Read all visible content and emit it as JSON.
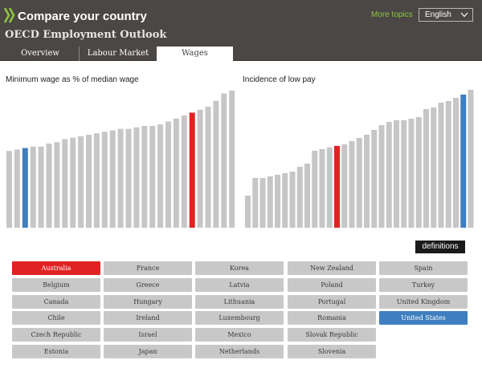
{
  "header": {
    "app_title": "Compare your country",
    "subtitle": "OECD Employment Outlook",
    "more_topics_label": "More topics",
    "language_value": "English"
  },
  "tabs": [
    {
      "label": "Overview"
    },
    {
      "label": "Labour Market"
    },
    {
      "label": "Wages",
      "active": true
    }
  ],
  "colors": {
    "bar_default": "#c6c6c6",
    "bar_highlight_red": "#e02322",
    "bar_highlight_blue": "#3f7fbf",
    "header_bg": "#4b4745",
    "link_green": "#8cc63f"
  },
  "chart_data": [
    {
      "type": "bar",
      "title": "Minimum wage as % of median wage",
      "grid": false,
      "ylim": [
        0,
        100
      ],
      "values": [
        52,
        53,
        54,
        55,
        55,
        57,
        58,
        60,
        61,
        62,
        63,
        64,
        65,
        66,
        67,
        67,
        68,
        69,
        69,
        70,
        72,
        74,
        76,
        78,
        80,
        82,
        86,
        91,
        93
      ],
      "highlight": [
        {
          "index": 23,
          "color": "#e02322"
        },
        {
          "index": 2,
          "color": "#3f7fbf"
        }
      ]
    },
    {
      "type": "bar",
      "title": "Incidence of low pay",
      "grid": false,
      "ylim": [
        0,
        100
      ],
      "values": [
        20,
        31,
        31,
        32,
        33,
        34,
        35,
        38,
        40,
        48,
        49,
        50,
        51,
        52,
        54,
        56,
        58,
        61,
        64,
        66,
        67,
        67,
        68,
        69,
        74,
        75,
        78,
        79,
        81,
        83,
        86
      ],
      "highlight": [
        {
          "index": 12,
          "color": "#e02322"
        },
        {
          "index": 29,
          "color": "#3f7fbf"
        }
      ]
    }
  ],
  "definitions_label": "definitions",
  "countries": [
    {
      "label": "Australia",
      "state": "red"
    },
    {
      "label": "Belgium",
      "state": ""
    },
    {
      "label": "Canada",
      "state": ""
    },
    {
      "label": "Chile",
      "state": ""
    },
    {
      "label": "Czech Republic",
      "state": ""
    },
    {
      "label": "Estonia",
      "state": ""
    },
    {
      "label": "France",
      "state": ""
    },
    {
      "label": "Greece",
      "state": ""
    },
    {
      "label": "Hungary",
      "state": ""
    },
    {
      "label": "Ireland",
      "state": ""
    },
    {
      "label": "Israel",
      "state": ""
    },
    {
      "label": "Japan",
      "state": ""
    },
    {
      "label": "Korea",
      "state": ""
    },
    {
      "label": "Latvia",
      "state": ""
    },
    {
      "label": "Lithuania",
      "state": ""
    },
    {
      "label": "Luxembourg",
      "state": ""
    },
    {
      "label": "Mexico",
      "state": ""
    },
    {
      "label": "Netherlands",
      "state": ""
    },
    {
      "label": "New Zealand",
      "state": ""
    },
    {
      "label": "Poland",
      "state": ""
    },
    {
      "label": "Portugal",
      "state": ""
    },
    {
      "label": "Romania",
      "state": ""
    },
    {
      "label": "Slovak Republic",
      "state": ""
    },
    {
      "label": "Slovenia",
      "state": ""
    },
    {
      "label": "Spain",
      "state": ""
    },
    {
      "label": "Turkey",
      "state": ""
    },
    {
      "label": "United Kingdom",
      "state": ""
    },
    {
      "label": "United States",
      "state": "blue"
    }
  ]
}
